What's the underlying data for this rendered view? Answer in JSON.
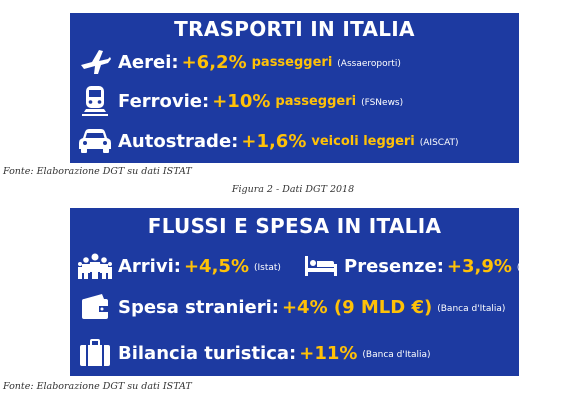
{
  "panel1": {
    "title": "TRASPORTI IN ITALIA",
    "rows": [
      {
        "icon": "airplane-icon",
        "label": "Aerei:",
        "value": "+6,2%",
        "desc": "passeggeri",
        "source": "(Assaeroporti)"
      },
      {
        "icon": "train-icon",
        "label": "Ferrovie:",
        "value": "+10%",
        "desc": "passeggeri",
        "source": "(FSNews)"
      },
      {
        "icon": "car-icon",
        "label": "Autostrade:",
        "value": "+1,6%",
        "desc": "veicoli leggeri",
        "source": "(AISCAT)"
      }
    ]
  },
  "fonte1": "Fonte: Elaborazione DGT su dati ISTAT",
  "caption": "Figura 2 - Dati DGT 2018",
  "panel2": {
    "title": "FLUSSI E SPESA IN ITALIA",
    "arrivi": {
      "icon": "people-group-icon",
      "label": "Arrivi:",
      "value": "+4,5%",
      "source": "(Istat)"
    },
    "presenze": {
      "icon": "bed-icon",
      "label": "Presenze:",
      "value": "+3,9%",
      "source": "(Istat)"
    },
    "spesa": {
      "icon": "wallet-icon",
      "label": "Spesa stranieri:",
      "value": "+4% (9 MLD €)",
      "source": "(Banca d'Italia)"
    },
    "bilancia": {
      "icon": "suitcase-icon",
      "label": "Bilancia turistica:",
      "value": "+11%",
      "source": "(Banca d'Italia)"
    }
  },
  "fonte2": "Fonte: Elaborazione DGT su dati ISTAT",
  "colors": {
    "panel": "#1d3aa1",
    "accent": "#ffc107",
    "text": "#ffffff"
  }
}
